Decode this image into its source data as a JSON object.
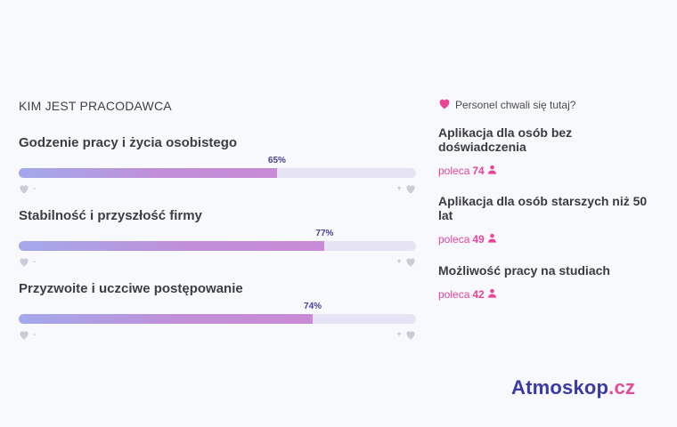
{
  "section_title": "KIM JEST PRACODAWCA",
  "metrics": [
    {
      "label": "Godzenie pracy i życia osobistego",
      "percent_text": "65%",
      "value": 65,
      "left_mark": "-",
      "right_mark": "+"
    },
    {
      "label": "Stabilność i przyszłość firmy",
      "percent_text": "77%",
      "value": 77,
      "left_mark": "-",
      "right_mark": "+"
    },
    {
      "label": "Przyzwoite i uczciwe postępowanie",
      "percent_text": "74%",
      "value": 74,
      "left_mark": "-",
      "right_mark": "+"
    }
  ],
  "praise": {
    "heading": "Personel chwali się tutaj?",
    "items": [
      {
        "title": "Aplikacja dla osób bez doświadczenia",
        "prefix": "poleca",
        "count": "74"
      },
      {
        "title": "Aplikacja dla osób starszych niż 50 lat",
        "prefix": "poleca",
        "count": "49"
      },
      {
        "title": "Możliwość pracy na studiach",
        "prefix": "poleca",
        "count": "42"
      }
    ]
  },
  "logo": {
    "part1": "Atmoskop",
    "part2": ".cz"
  },
  "colors": {
    "accent_pink": "#e9439a",
    "brand_navy": "#3b3aa6",
    "bar_track": "#e6e3f5",
    "percent_text": "#4a3f93"
  },
  "icons": {
    "heading_icon": "heart-icon",
    "recommend_icon": "person-icon",
    "scale_icon": "heart-outline-icon"
  }
}
